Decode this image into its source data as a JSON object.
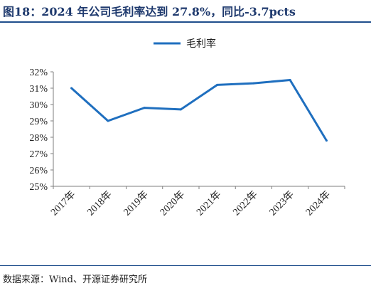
{
  "header": {
    "title": "图18：2024 年公司毛利率达到 27.8%，同比-3.7pcts"
  },
  "footer": {
    "source": "数据来源：Wind、开源证券研究所"
  },
  "chart_data": {
    "type": "line",
    "categories": [
      "2017年",
      "2018年",
      "2019年",
      "2020年",
      "2021年",
      "2022年",
      "2023年",
      "2024年"
    ],
    "series": [
      {
        "name": "毛利率",
        "values": [
          31.0,
          29.0,
          29.8,
          29.7,
          31.2,
          31.3,
          31.5,
          27.8
        ],
        "color": "#1f6fbf"
      }
    ],
    "y_ticks": [
      "25%",
      "26%",
      "27%",
      "28%",
      "29%",
      "30%",
      "31%",
      "32%"
    ],
    "ylim": [
      25,
      32
    ],
    "y_unit": "%",
    "grid": false,
    "legend_position": "top-center"
  }
}
